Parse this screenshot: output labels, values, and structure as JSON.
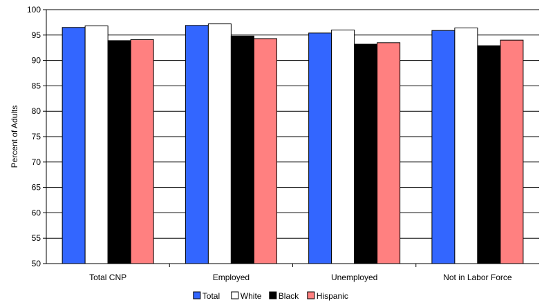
{
  "chart_data": {
    "type": "bar",
    "title": "",
    "xlabel": "",
    "ylabel": "Percent of Adults",
    "ylim": [
      50,
      100
    ],
    "yticks": [
      50,
      55,
      60,
      65,
      70,
      75,
      80,
      85,
      90,
      95,
      100
    ],
    "grid": "horizontal",
    "legend_position": "bottom",
    "categories": [
      "Total CNP",
      "Employed",
      "Unemployed",
      "Not in Labor Force"
    ],
    "series": [
      {
        "name": "Total",
        "color": "#3366ff",
        "values": [
          96.5,
          96.9,
          95.4,
          95.9
        ]
      },
      {
        "name": "White",
        "color": "#ffffff",
        "values": [
          96.8,
          97.2,
          96.0,
          96.4
        ]
      },
      {
        "name": "Black",
        "color": "#000000",
        "values": [
          93.9,
          94.8,
          93.2,
          92.9
        ]
      },
      {
        "name": "Hispanic",
        "color": "#ff8080",
        "values": [
          94.1,
          94.3,
          93.5,
          94.0
        ]
      }
    ]
  }
}
